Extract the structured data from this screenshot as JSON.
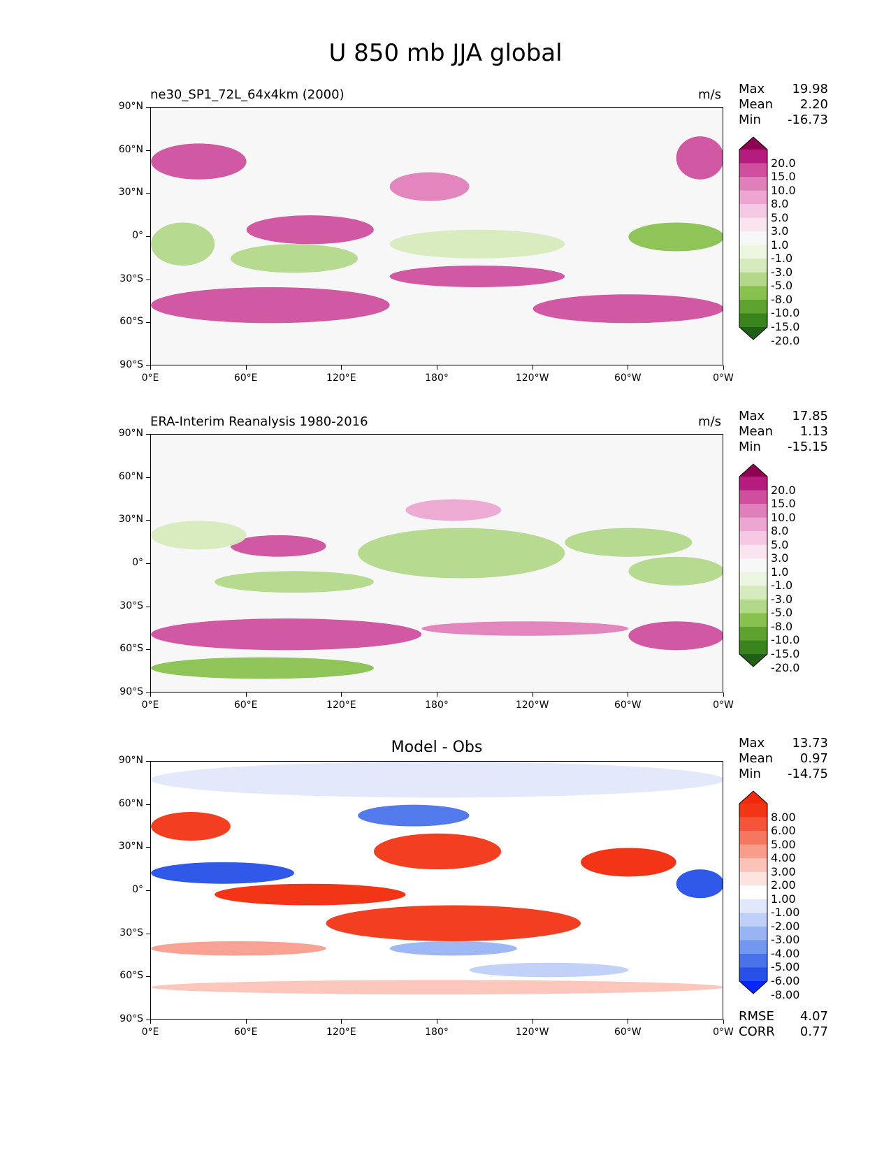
{
  "title": "U 850 mb JJA global",
  "colors": {
    "pink_green": [
      "#1f5f16",
      "#3a841e",
      "#5ea230",
      "#89c14f",
      "#b2d889",
      "#d6ebbd",
      "#ecf5e0",
      "#f7f7f7",
      "#fae4f0",
      "#f5c9e3",
      "#eca6d1",
      "#e07fb9",
      "#cf4f9e",
      "#b61c7d",
      "#8e0152"
    ],
    "blue_red": [
      "#0427fb",
      "#2650e8",
      "#4a73ea",
      "#7197ef",
      "#98b4f3",
      "#bfcff7",
      "#e1e8fb",
      "#ffffff",
      "#fde3de",
      "#fbc3b8",
      "#f99c8c",
      "#f6775f",
      "#f4553a",
      "#f13515",
      "#f02a0a"
    ]
  },
  "chart_data": [
    {
      "type": "heatmap",
      "title": "ne30_SP1_72L_64x4km (2000)",
      "units": "m/s",
      "stats": {
        "max": "19.98",
        "mean": "2.20",
        "min": "-16.73"
      },
      "xtick_labels": [
        "0°E",
        "60°E",
        "120°E",
        "180°",
        "120°W",
        "60°W",
        "0°W"
      ],
      "ytick_labels": [
        "90°N",
        "60°N",
        "30°N",
        "0°",
        "30°S",
        "60°S",
        "90°S"
      ],
      "colorbar_levels": [
        "20.0",
        "15.0",
        "10.0",
        "8.0",
        "5.0",
        "3.0",
        "1.0",
        "-1.0",
        "-3.0",
        "-5.0",
        "-8.0",
        "-10.0",
        "-15.0",
        "-20.0"
      ],
      "xlim": [
        0,
        360
      ],
      "ylim": [
        -90,
        90
      ],
      "field": [
        {
          "lon": [
            0,
            60
          ],
          "lat": [
            40,
            65
          ],
          "value": 10
        },
        {
          "lon": [
            150,
            200
          ],
          "lat": [
            25,
            45
          ],
          "value": 8
        },
        {
          "lon": [
            330,
            360
          ],
          "lat": [
            40,
            70
          ],
          "value": 12
        },
        {
          "lon": [
            0,
            40
          ],
          "lat": [
            -20,
            10
          ],
          "value": -8
        },
        {
          "lon": [
            60,
            140
          ],
          "lat": [
            -5,
            15
          ],
          "value": 14
        },
        {
          "lon": [
            50,
            130
          ],
          "lat": [
            -25,
            -5
          ],
          "value": -6
        },
        {
          "lon": [
            150,
            260
          ],
          "lat": [
            -15,
            5
          ],
          "value": -5
        },
        {
          "lon": [
            300,
            360
          ],
          "lat": [
            -10,
            10
          ],
          "value": -10
        },
        {
          "lon": [
            0,
            150
          ],
          "lat": [
            -60,
            -35
          ],
          "value": 14
        },
        {
          "lon": [
            150,
            260
          ],
          "lat": [
            -35,
            -20
          ],
          "value": 12
        },
        {
          "lon": [
            240,
            360
          ],
          "lat": [
            -60,
            -40
          ],
          "value": 12
        }
      ]
    },
    {
      "type": "heatmap",
      "title": "ERA-Interim Reanalysis 1980-2016",
      "units": "m/s",
      "stats": {
        "max": "17.85",
        "mean": "1.13",
        "min": "-15.15"
      },
      "xtick_labels": [
        "0°E",
        "60°E",
        "120°E",
        "180°",
        "120°W",
        "60°W",
        "0°W"
      ],
      "ytick_labels": [
        "90°N",
        "60°N",
        "30°N",
        "0°",
        "30°S",
        "60°S",
        "90°S"
      ],
      "colorbar_levels": [
        "20.0",
        "15.0",
        "10.0",
        "8.0",
        "5.0",
        "3.0",
        "1.0",
        "-1.0",
        "-3.0",
        "-5.0",
        "-8.0",
        "-10.0",
        "-15.0",
        "-20.0"
      ],
      "xlim": [
        0,
        360
      ],
      "ylim": [
        -90,
        90
      ],
      "field": [
        {
          "lon": [
            160,
            220
          ],
          "lat": [
            30,
            45
          ],
          "value": 6
        },
        {
          "lon": [
            50,
            110
          ],
          "lat": [
            5,
            20
          ],
          "value": 13
        },
        {
          "lon": [
            0,
            60
          ],
          "lat": [
            10,
            30
          ],
          "value": -4
        },
        {
          "lon": [
            130,
            260
          ],
          "lat": [
            -10,
            25
          ],
          "value": -6
        },
        {
          "lon": [
            260,
            340
          ],
          "lat": [
            5,
            25
          ],
          "value": -8
        },
        {
          "lon": [
            40,
            140
          ],
          "lat": [
            -20,
            -5
          ],
          "value": -7
        },
        {
          "lon": [
            300,
            360
          ],
          "lat": [
            -15,
            5
          ],
          "value": -6
        },
        {
          "lon": [
            0,
            170
          ],
          "lat": [
            -60,
            -38
          ],
          "value": 13
        },
        {
          "lon": [
            170,
            300
          ],
          "lat": [
            -50,
            -40
          ],
          "value": 8
        },
        {
          "lon": [
            300,
            360
          ],
          "lat": [
            -60,
            -40
          ],
          "value": 13
        },
        {
          "lon": [
            0,
            140
          ],
          "lat": [
            -80,
            -65
          ],
          "value": -9
        }
      ]
    },
    {
      "type": "heatmap",
      "title": "Model - Obs",
      "units": "",
      "stats": {
        "max": "13.73",
        "mean": "0.97",
        "min": "-14.75",
        "rmse": "4.07",
        "corr": "0.77"
      },
      "stat_labels": {
        "rmse": "RMSE",
        "corr": "CORR"
      },
      "xtick_labels": [
        "0°E",
        "60°E",
        "120°E",
        "180°",
        "120°W",
        "60°W",
        "0°W"
      ],
      "ytick_labels": [
        "90°N",
        "60°N",
        "30°N",
        "0°",
        "30°S",
        "60°S",
        "90°S"
      ],
      "colorbar_levels": [
        "8.00",
        "6.00",
        "5.00",
        "4.00",
        "3.00",
        "2.00",
        "1.00",
        "-1.00",
        "-2.00",
        "-3.00",
        "-4.00",
        "-5.00",
        "-6.00",
        "-8.00"
      ],
      "xlim": [
        0,
        360
      ],
      "ylim": [
        -90,
        90
      ],
      "field": [
        {
          "lon": [
            0,
            360
          ],
          "lat": [
            65,
            90
          ],
          "value": -2
        },
        {
          "lon": [
            0,
            50
          ],
          "lat": [
            35,
            55
          ],
          "value": 6
        },
        {
          "lon": [
            0,
            90
          ],
          "lat": [
            5,
            20
          ],
          "value": -8
        },
        {
          "lon": [
            130,
            200
          ],
          "lat": [
            45,
            60
          ],
          "value": -6
        },
        {
          "lon": [
            140,
            220
          ],
          "lat": [
            15,
            40
          ],
          "value": 7
        },
        {
          "lon": [
            270,
            330
          ],
          "lat": [
            10,
            30
          ],
          "value": 8
        },
        {
          "lon": [
            330,
            360
          ],
          "lat": [
            -5,
            15
          ],
          "value": -8
        },
        {
          "lon": [
            40,
            160
          ],
          "lat": [
            -10,
            5
          ],
          "value": 8
        },
        {
          "lon": [
            110,
            270
          ],
          "lat": [
            -35,
            -10
          ],
          "value": 7
        },
        {
          "lon": [
            150,
            230
          ],
          "lat": [
            -45,
            -35
          ],
          "value": -4
        },
        {
          "lon": [
            0,
            110
          ],
          "lat": [
            -45,
            -35
          ],
          "value": 3
        },
        {
          "lon": [
            200,
            300
          ],
          "lat": [
            -60,
            -50
          ],
          "value": -3
        },
        {
          "lon": [
            0,
            360
          ],
          "lat": [
            -72,
            -62
          ],
          "value": 2
        }
      ]
    }
  ]
}
